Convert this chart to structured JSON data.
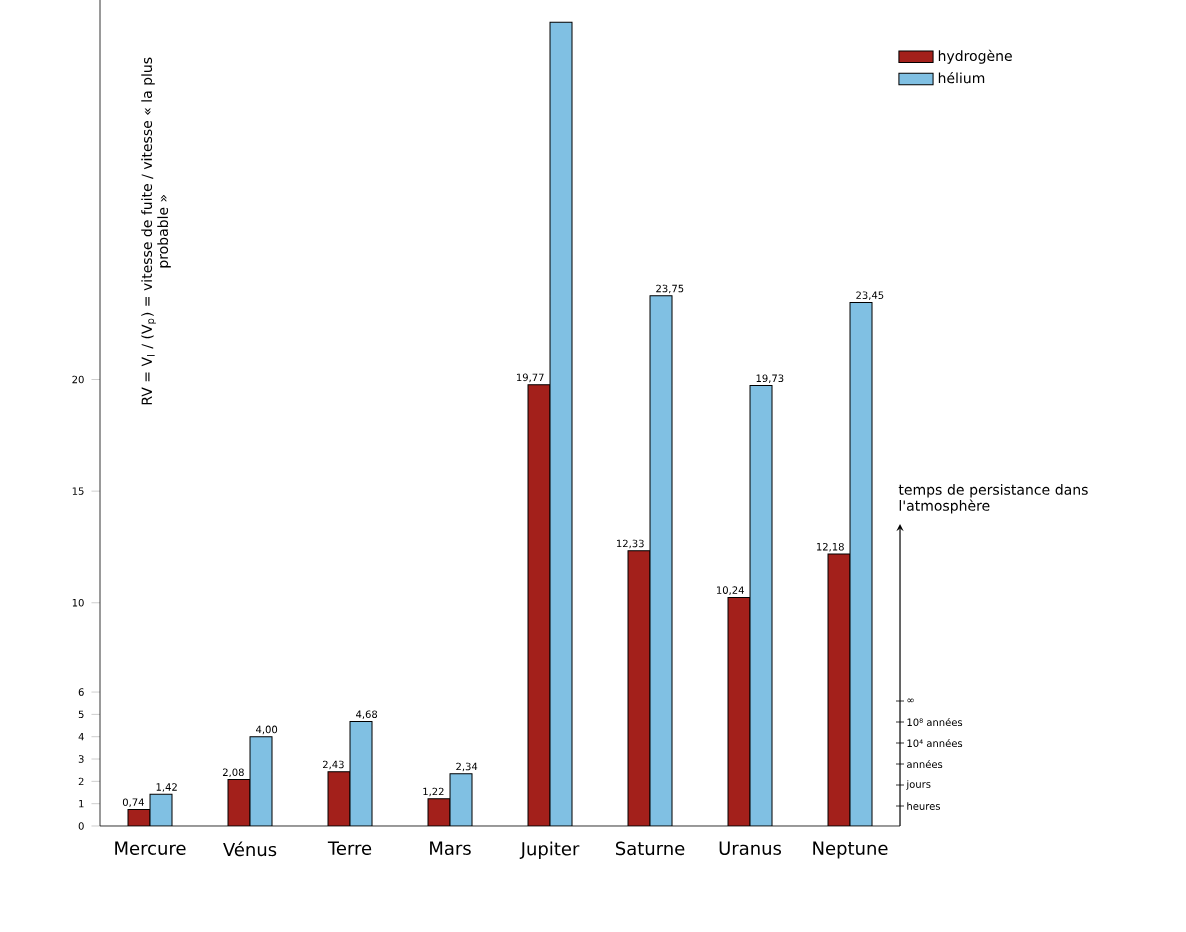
{
  "chart_data": {
    "type": "bar",
    "ylabel": "RV = V$_{l}$ / (V$_{p}$) = vitesse de fuite / vitesse « la plus probable »",
    "categories": [
      "Mercure",
      "Vénus",
      "Terre",
      "Mars",
      "Jupiter",
      "Saturne",
      "Uranus",
      "Neptune"
    ],
    "series": [
      {
        "name": "hydrogène",
        "color": "#a3201b",
        "values": [
          0.74,
          2.08,
          2.43,
          1.22,
          19.77,
          12.33,
          10.24,
          12.18
        ],
        "value_labels": [
          "0,74",
          "2,08",
          "2,43",
          "1,22",
          "19,77",
          "12,33",
          "10,24",
          "12,18"
        ]
      },
      {
        "name": "hélium",
        "color": "#80c0e3",
        "values": [
          1.42,
          4.0,
          4.68,
          2.34,
          36,
          23.75,
          19.73,
          23.45
        ],
        "value_labels": [
          "1,42",
          "4,00",
          "4,68",
          "2,34",
          null,
          "23,75",
          "19,73",
          "23,45"
        ]
      }
    ],
    "ylim": [
      0,
      37
    ],
    "yticks": [
      0,
      1,
      2,
      3,
      4,
      5,
      6,
      10,
      15,
      20
    ],
    "annotations": [
      "temps de persistance dans l'atmosphère",
      "∞",
      "10⁸ années",
      "10⁴ années",
      "années",
      "jours",
      "heures"
    ],
    "legend": "top right"
  }
}
